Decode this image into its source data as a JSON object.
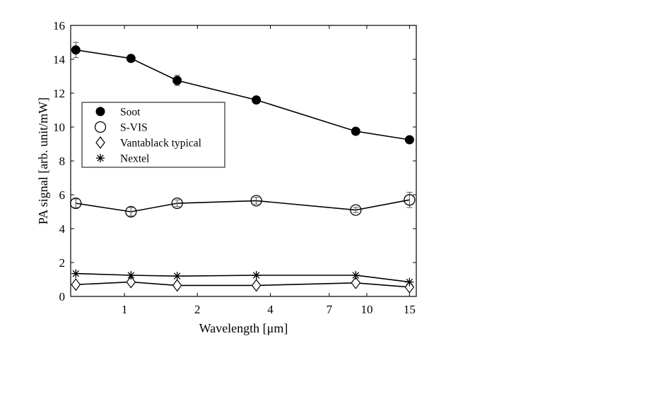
{
  "chart_data": {
    "type": "line",
    "title": "",
    "xlabel": "Wavelength [μm]",
    "ylabel": "PA signal [arb. unit/mW]",
    "xscale": "log",
    "xlim": [
      0.6,
      16
    ],
    "ylim": [
      0,
      16
    ],
    "xticks": [
      1,
      2,
      4,
      7,
      10,
      15
    ],
    "xtick_labels": [
      "1",
      "2",
      "4",
      "7",
      "10",
      "15"
    ],
    "yticks": [
      0,
      2,
      4,
      6,
      8,
      10,
      12,
      14,
      16
    ],
    "ytick_labels": [
      "0",
      "2",
      "4",
      "6",
      "8",
      "10",
      "12",
      "14",
      "16"
    ],
    "x": [
      0.63,
      1.064,
      1.65,
      3.5,
      9.0,
      15.0
    ],
    "legend_position": "middle-left",
    "series": [
      {
        "name": "Soot",
        "marker": "filled-circle",
        "values": [
          14.55,
          14.05,
          12.75,
          11.6,
          9.75,
          9.25
        ],
        "errors": [
          0.45,
          0.15,
          0.3,
          0.15,
          0.15,
          0.15
        ]
      },
      {
        "name": "S-VIS",
        "marker": "open-circle",
        "values": [
          5.5,
          5.0,
          5.5,
          5.65,
          5.1,
          5.7
        ],
        "errors": [
          0.25,
          0.25,
          0.2,
          0.2,
          0.15,
          0.45
        ]
      },
      {
        "name": "Vantablack typical",
        "marker": "open-diamond",
        "values": [
          0.7,
          0.85,
          0.65,
          0.65,
          0.8,
          0.55
        ],
        "errors": [
          0,
          0,
          0,
          0,
          0,
          0
        ]
      },
      {
        "name": "Nextel",
        "marker": "asterisk",
        "values": [
          1.35,
          1.25,
          1.2,
          1.25,
          1.25,
          0.85
        ],
        "errors": [
          0,
          0,
          0,
          0,
          0,
          0
        ]
      }
    ]
  }
}
